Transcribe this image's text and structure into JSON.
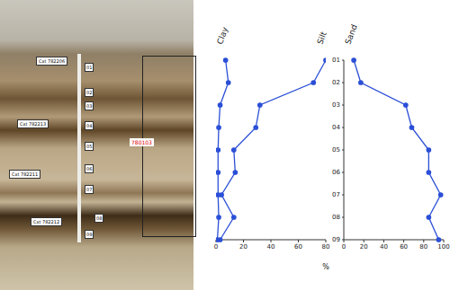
{
  "photo": {
    "labels": [
      "Cxt 782206",
      "Cxt 782213",
      "Cxt 782211",
      "Cxt 782212"
    ],
    "samples": [
      "01",
      "02",
      "03",
      "04",
      "05",
      "06",
      "07",
      "08",
      "09"
    ],
    "highlight": "780103"
  },
  "chart_data": [
    {
      "type": "line",
      "x_label": "%",
      "categories": [
        "01",
        "02",
        "03",
        "04",
        "05",
        "06",
        "07",
        "08",
        "09"
      ],
      "series": [
        {
          "name": "Clay",
          "color": "#2b4fd6",
          "marker": "circle",
          "values": [
            7,
            9,
            3,
            2,
            1.5,
            1.5,
            1.5,
            2,
            1
          ]
        },
        {
          "name": "Silt",
          "color": "#2b4fd6",
          "marker": "circle",
          "values": [
            80,
            71,
            32,
            29,
            13,
            14,
            4,
            13,
            3
          ]
        }
      ],
      "xlim": [
        0,
        80
      ],
      "xticks": [
        0,
        20,
        40,
        60,
        80
      ],
      "tick_labels": "x"
    },
    {
      "type": "line",
      "categories": [
        "01",
        "02",
        "03",
        "04",
        "05",
        "06",
        "07",
        "08",
        "09"
      ],
      "series": [
        {
          "name": "Sand",
          "color": "#2b4fd6",
          "marker": "circle",
          "values": [
            10,
            17,
            62,
            68,
            85,
            85,
            97,
            85,
            95
          ]
        }
      ],
      "xlim": [
        0,
        100
      ],
      "xticks": [
        0,
        20,
        40,
        60,
        80,
        100
      ],
      "tick_labels": true
    }
  ]
}
